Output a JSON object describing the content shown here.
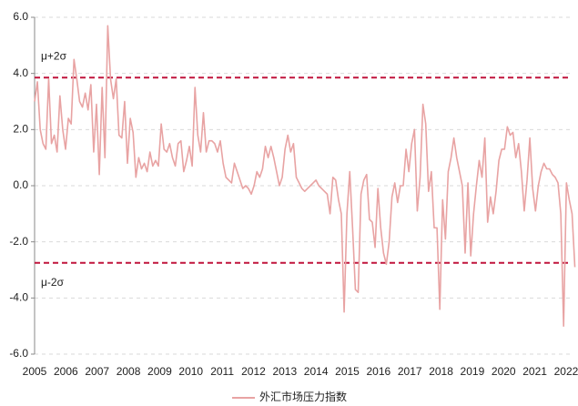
{
  "chart_data": {
    "type": "line",
    "xlim": [
      2005,
      2022.3
    ],
    "xticks": [
      2005,
      2006,
      2007,
      2008,
      2009,
      2010,
      2011,
      2012,
      2013,
      2014,
      2015,
      2016,
      2017,
      2018,
      2019,
      2020,
      2021,
      2022
    ],
    "ylim": [
      -6,
      6
    ],
    "yticks": [
      {
        "value": 6,
        "label": "6.0"
      },
      {
        "value": 4,
        "label": "4.0"
      },
      {
        "value": 2,
        "label": "2.0"
      },
      {
        "value": 0,
        "label": "0.0"
      },
      {
        "value": -2,
        "label": "-2.0"
      },
      {
        "value": -4,
        "label": "-4.0"
      },
      {
        "value": -6,
        "label": "-6.0"
      }
    ],
    "grid": true,
    "legend": "bottom",
    "reference_lines": [
      {
        "label": "μ+2σ",
        "value": 3.85,
        "color": "#c0143c"
      },
      {
        "label": "μ-2σ",
        "value": -2.75,
        "color": "#c0143c"
      }
    ],
    "x": [
      2005,
      2005.09,
      2005.18,
      2005.27,
      2005.36,
      2005.45,
      2005.54,
      2005.63,
      2005.72,
      2005.81,
      2005.9,
      2005.99,
      2006.08,
      2006.17,
      2006.26,
      2006.35,
      2006.44,
      2006.53,
      2006.62,
      2006.71,
      2006.8,
      2006.89,
      2006.98,
      2007.07,
      2007.16,
      2007.25,
      2007.34,
      2007.43,
      2007.52,
      2007.61,
      2007.7,
      2007.79,
      2007.88,
      2007.97,
      2008.06,
      2008.15,
      2008.24,
      2008.33,
      2008.42,
      2008.51,
      2008.6,
      2008.69,
      2008.78,
      2008.87,
      2008.96,
      2009.05,
      2009.14,
      2009.23,
      2009.32,
      2009.41,
      2009.5,
      2009.59,
      2009.68,
      2009.77,
      2009.86,
      2009.95,
      2010.04,
      2010.13,
      2010.22,
      2010.31,
      2010.4,
      2010.49,
      2010.58,
      2010.67,
      2010.76,
      2010.85,
      2010.94,
      2011.03,
      2011.12,
      2011.21,
      2011.3,
      2011.39,
      2011.48,
      2011.57,
      2011.66,
      2011.75,
      2011.84,
      2011.93,
      2012.02,
      2012.11,
      2012.2,
      2012.29,
      2012.38,
      2012.47,
      2012.56,
      2012.65,
      2012.74,
      2012.83,
      2012.92,
      2013.01,
      2013.1,
      2013.19,
      2013.28,
      2013.37,
      2013.46,
      2013.55,
      2013.64,
      2013.73,
      2013.82,
      2013.91,
      2014,
      2014.09,
      2014.18,
      2014.27,
      2014.36,
      2014.45,
      2014.54,
      2014.63,
      2014.72,
      2014.81,
      2014.9,
      2014.99,
      2015.08,
      2015.17,
      2015.26,
      2015.35,
      2015.44,
      2015.53,
      2015.62,
      2015.71,
      2015.8,
      2015.89,
      2015.98,
      2016.07,
      2016.16,
      2016.25,
      2016.34,
      2016.43,
      2016.52,
      2016.61,
      2016.7,
      2016.79,
      2016.88,
      2016.97,
      2017.06,
      2017.15,
      2017.24,
      2017.33,
      2017.42,
      2017.51,
      2017.6,
      2017.69,
      2017.78,
      2017.87,
      2017.96,
      2018.05,
      2018.14,
      2018.23,
      2018.32,
      2018.41,
      2018.5,
      2018.59,
      2018.68,
      2018.77,
      2018.86,
      2018.95,
      2019.04,
      2019.13,
      2019.22,
      2019.31,
      2019.4,
      2019.49,
      2019.58,
      2019.67,
      2019.76,
      2019.85,
      2019.94,
      2020.03,
      2020.12,
      2020.21,
      2020.3,
      2020.39,
      2020.48,
      2020.57,
      2020.66,
      2020.75,
      2020.84,
      2020.93,
      2021.02,
      2021.11,
      2021.2,
      2021.29,
      2021.38,
      2021.47,
      2021.56,
      2021.65,
      2021.74,
      2021.83,
      2021.92,
      2022.01,
      2022.1,
      2022.19,
      2022.28
    ],
    "series": [
      {
        "name": "外汇市场压力指数",
        "color": "#e8a3a3",
        "values": [
          3.0,
          3.7,
          2.0,
          1.5,
          1.3,
          3.8,
          1.5,
          1.8,
          1.2,
          3.2,
          2.0,
          1.3,
          2.4,
          2.2,
          4.5,
          3.8,
          3.0,
          2.8,
          3.3,
          2.7,
          3.6,
          1.2,
          2.9,
          0.4,
          3.5,
          1.0,
          5.7,
          3.8,
          3.1,
          3.8,
          1.8,
          1.7,
          3.0,
          0.8,
          2.4,
          1.9,
          0.3,
          1.0,
          0.6,
          0.8,
          0.5,
          1.2,
          0.7,
          0.9,
          0.7,
          2.2,
          1.3,
          1.2,
          1.5,
          1.0,
          0.7,
          1.5,
          1.6,
          0.5,
          0.9,
          1.4,
          0.7,
          3.5,
          1.8,
          1.2,
          2.6,
          1.2,
          1.6,
          1.6,
          1.5,
          1.2,
          1.6,
          0.8,
          0.3,
          0.2,
          0.1,
          0.8,
          0.5,
          0.2,
          -0.1,
          0.0,
          -0.1,
          -0.3,
          0.0,
          0.5,
          0.3,
          0.6,
          1.4,
          1.0,
          1.4,
          1.0,
          0.5,
          0.0,
          0.3,
          1.3,
          1.8,
          1.2,
          1.5,
          0.3,
          0.1,
          -0.1,
          -0.2,
          -0.1,
          0.0,
          0.1,
          0.2,
          0.0,
          -0.1,
          -0.2,
          -0.3,
          -1.0,
          0.3,
          0.2,
          -0.5,
          -1.0,
          -4.5,
          -1.0,
          0.5,
          -1.5,
          -3.7,
          -3.8,
          -0.3,
          0.2,
          0.4,
          -1.2,
          -1.3,
          -2.2,
          -0.1,
          -1.5,
          -2.4,
          -2.8,
          -2.0,
          -0.4,
          0.1,
          -0.6,
          0.0,
          0.0,
          1.3,
          0.5,
          1.5,
          2.0,
          -0.9,
          0.3,
          2.9,
          2.2,
          -0.2,
          0.5,
          -1.5,
          -1.5,
          -4.4,
          -0.5,
          -1.9,
          0.5,
          1.0,
          1.7,
          1.0,
          0.5,
          0.0,
          -2.4,
          0.1,
          -2.5,
          -1.0,
          0.0,
          0.9,
          0.3,
          1.7,
          -1.3,
          -0.4,
          -1.0,
          -0.2,
          0.9,
          1.3,
          1.3,
          2.1,
          1.8,
          1.9,
          1.0,
          1.5,
          0.5,
          -0.9,
          0.2,
          1.7,
          -0.1,
          -0.9,
          0.0,
          0.5,
          0.8,
          0.6,
          0.6,
          0.4,
          0.3,
          0.1,
          -1.0,
          -5.0,
          0.1,
          -0.5,
          -1.0,
          -2.9
        ]
      }
    ]
  }
}
